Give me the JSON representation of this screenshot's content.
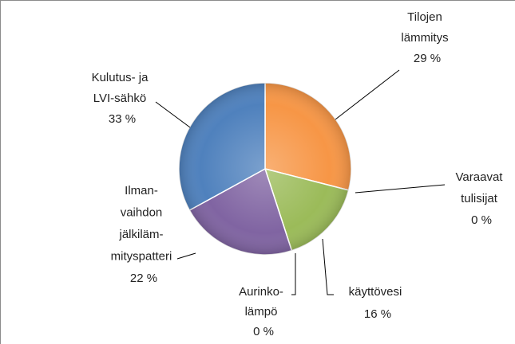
{
  "chart_data": {
    "type": "pie",
    "categories": [
      [
        "Tilojen",
        "lämmitys"
      ],
      [
        "Varaavat",
        "tulisijat"
      ],
      [
        "käyttövesi"
      ],
      [
        "Aurinko-",
        "lämpö"
      ],
      [
        "Ilman-",
        "vaihdon",
        "jälkiläm-",
        "mityspatteri"
      ],
      [
        "Kulutus- ja",
        "LVI-sähkö"
      ]
    ],
    "values": [
      29,
      0,
      16,
      0,
      22,
      33
    ],
    "value_labels": [
      "29 %",
      "0 %",
      "16 %",
      "0 %",
      "22 %",
      "33 %"
    ],
    "colors": [
      "#f79646",
      "#c0504d",
      "#9bbb59",
      "#4bacc6",
      "#8064a2",
      "#4f81bd"
    ]
  }
}
